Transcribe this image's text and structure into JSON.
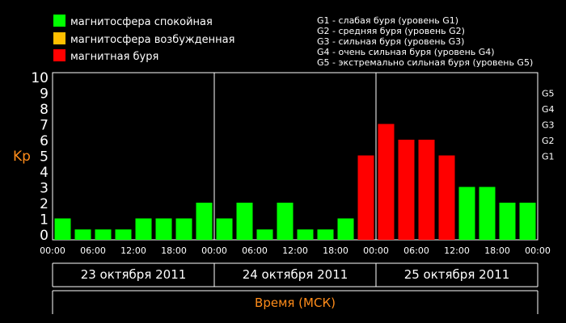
{
  "legend": {
    "items": [
      {
        "label": "магнитосфера спокойная",
        "color": "#00ff00"
      },
      {
        "label": "магнитосфера возбужденная",
        "color": "#ffbf00"
      },
      {
        "label": "магнитная буря",
        "color": "#ff0000"
      }
    ],
    "g_scale": [
      "G1 - слабая буря (уровень G1)",
      "G2 - средняя буря (уровень G2)",
      "G3 - сильная буря (уровень G3)",
      "G4 - очень сильная буря (уровень G4)",
      "G5 - экстремально сильная буря (уровень G5)"
    ]
  },
  "chart_data": {
    "type": "bar",
    "ylabel": "Kp",
    "xlabel": "Время (МСК)",
    "ylim": [
      0,
      10
    ],
    "y_ticks": [
      "0",
      "1",
      "2",
      "3",
      "4",
      "5",
      "6",
      "7",
      "8",
      "9",
      "10"
    ],
    "right_ticks": [
      {
        "label": "G1",
        "value": 5
      },
      {
        "label": "G2",
        "value": 6
      },
      {
        "label": "G3",
        "value": 7
      },
      {
        "label": "G4",
        "value": 8
      },
      {
        "label": "G5",
        "value": 9
      }
    ],
    "time_ticks": [
      "00:00",
      "06:00",
      "12:00",
      "18:00",
      "00:00",
      "06:00",
      "12:00",
      "18:00",
      "00:00",
      "06:00",
      "12:00",
      "18:00",
      "00:00"
    ],
    "days": [
      "23 октября 2011",
      "24 октября 2011",
      "25 октября 2011"
    ],
    "values": [
      1,
      0.3,
      0.3,
      0.3,
      1,
      1,
      1,
      2,
      1,
      2,
      0.3,
      2,
      0.3,
      0.3,
      1,
      5,
      7,
      6,
      6,
      5,
      3,
      3,
      2,
      2
    ],
    "colors": {
      "calm": "#00ff00",
      "excited": "#ffbf00",
      "storm": "#ff0000"
    },
    "grid": false
  }
}
